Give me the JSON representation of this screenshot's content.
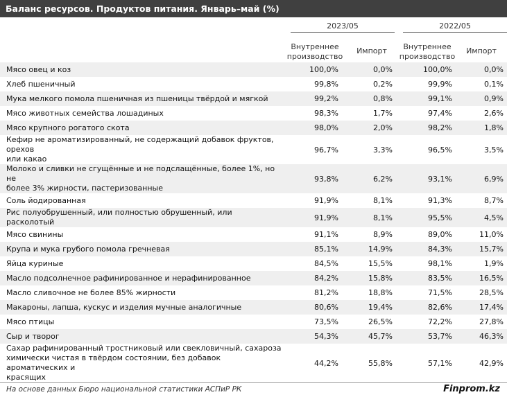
{
  "title": "Баланс ресурсов. Продуктов питания. Январь–май (%)",
  "years": [
    "2023/05",
    "2022/05"
  ],
  "columns": {
    "domestic": [
      "Внутреннее",
      "производство"
    ],
    "import": "Импорт"
  },
  "rows": [
    {
      "name": [
        "Мясо овец и коз"
      ],
      "v": [
        "100,0%",
        "0,0%",
        "100,0%",
        "0,0%"
      ]
    },
    {
      "name": [
        "Хлеб пшеничный"
      ],
      "v": [
        "99,8%",
        "0,2%",
        "99,9%",
        "0,1%"
      ]
    },
    {
      "name": [
        "Мука мелкого помола пшеничная из пшеницы твёрдой и мягкой"
      ],
      "v": [
        "99,2%",
        "0,8%",
        "99,1%",
        "0,9%"
      ]
    },
    {
      "name": [
        "Мясо животных семейства лошадиных"
      ],
      "v": [
        "98,3%",
        "1,7%",
        "97,4%",
        "2,6%"
      ]
    },
    {
      "name": [
        "Мясо крупного рогатого скота"
      ],
      "v": [
        "98,0%",
        "2,0%",
        "98,2%",
        "1,8%"
      ]
    },
    {
      "name": [
        "Кефир не ароматизированный, не содержащий добавок фруктов, орехов",
        "или какао"
      ],
      "v": [
        "96,7%",
        "3,3%",
        "96,5%",
        "3,5%"
      ]
    },
    {
      "name": [
        "Молоко и сливки не сгущённые и не подслащённые, более 1%, но не",
        "более 3% жирности, пастеризованные"
      ],
      "v": [
        "93,8%",
        "6,2%",
        "93,1%",
        "6,9%"
      ]
    },
    {
      "name": [
        "Соль йодированная"
      ],
      "v": [
        "91,9%",
        "8,1%",
        "91,3%",
        "8,7%"
      ]
    },
    {
      "name": [
        "Рис полуобрушенный, или полностью обрушенный, или расколотый"
      ],
      "v": [
        "91,9%",
        "8,1%",
        "95,5%",
        "4,5%"
      ]
    },
    {
      "name": [
        "Мясо свинины"
      ],
      "v": [
        "91,1%",
        "8,9%",
        "89,0%",
        "11,0%"
      ]
    },
    {
      "name": [
        "Крупа и мука грубого помола гречневая"
      ],
      "v": [
        "85,1%",
        "14,9%",
        "84,3%",
        "15,7%"
      ]
    },
    {
      "name": [
        "Яйца куриные"
      ],
      "v": [
        "84,5%",
        "15,5%",
        "98,1%",
        "1,9%"
      ]
    },
    {
      "name": [
        "Масло подсолнечное рафинированное и нерафинированное"
      ],
      "v": [
        "84,2%",
        "15,8%",
        "83,5%",
        "16,5%"
      ]
    },
    {
      "name": [
        "Масло сливочное не более 85% жирности"
      ],
      "v": [
        "81,2%",
        "18,8%",
        "71,5%",
        "28,5%"
      ]
    },
    {
      "name": [
        "Макароны, лапша, кускус и изделия мучные аналогичные"
      ],
      "v": [
        "80,6%",
        "19,4%",
        "82,6%",
        "17,4%"
      ]
    },
    {
      "name": [
        "Мясо птицы"
      ],
      "v": [
        "73,5%",
        "26,5%",
        "72,2%",
        "27,8%"
      ]
    },
    {
      "name": [
        "Сыр и творог"
      ],
      "v": [
        "54,3%",
        "45,7%",
        "53,7%",
        "46,3%"
      ]
    },
    {
      "name": [
        "Сахар рафинированный тростниковый или свекловичный, сахароза",
        "химически чистая в твёрдом состоянии, без добавок ароматических и",
        "красящих"
      ],
      "v": [
        "44,2%",
        "55,8%",
        "57,1%",
        "42,9%"
      ]
    }
  ],
  "footer": {
    "source": "На основе данных Бюро национальной статистики АСПиР РК",
    "brand": "Finprom.kz"
  },
  "colors": {
    "title_bg": "#404040",
    "stripe": "#efefef"
  }
}
